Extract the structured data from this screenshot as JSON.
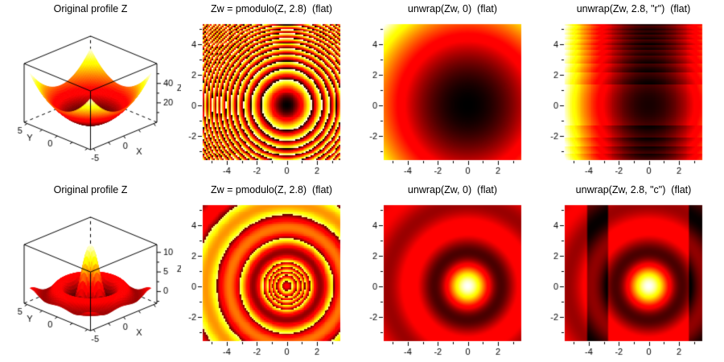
{
  "window": {
    "background": "#ffffff",
    "text_color": "#000000"
  },
  "chart_data": [
    {
      "type": "surface3d",
      "title": "Original profile Z",
      "func": "paraboloid",
      "surface_domain": [
        -5,
        5
      ],
      "box_xy_range": [
        -5.5,
        5.5
      ],
      "z_range": [
        0,
        60.5
      ],
      "x_axis": {
        "label": "X",
        "major_ticks": [
          -5,
          0
        ],
        "tick_labels": [
          "-5",
          "0"
        ],
        "minor_ticks": [
          -2.5,
          2.5,
          5
        ]
      },
      "y_axis": {
        "label": "Y",
        "major_ticks": [
          0,
          5
        ],
        "tick_labels": [
          "0",
          "5"
        ],
        "minor_ticks": [
          -5,
          -2.5,
          2.5
        ]
      },
      "z_axis": {
        "label": "Z",
        "major_ticks": [
          20,
          40
        ],
        "tick_labels": [
          "20",
          "40"
        ],
        "minor_ticks": [
          10,
          30,
          50
        ]
      },
      "color_norm": [
        0,
        50
      ]
    },
    {
      "type": "heatmap",
      "title": "Zw = pmodulo(Z, 2.8)  (flat)",
      "func": "paraboloid",
      "op": "pmodulo",
      "modulo": 2.8,
      "x_range": [
        -5.6,
        3.55
      ],
      "y_range": [
        -3.6,
        5.3
      ],
      "x_axis": {
        "major_ticks": [
          -4,
          -2,
          0,
          2
        ],
        "tick_labels": [
          "-4",
          "-2",
          "0",
          "2"
        ],
        "minor_ticks": [
          -5,
          -3,
          -1,
          1,
          3
        ]
      },
      "y_axis": {
        "major_ticks": [
          -2,
          0,
          2,
          4
        ],
        "tick_labels": [
          "-2",
          "0",
          "2",
          "4"
        ],
        "minor_ticks": [
          -3,
          -1,
          1,
          3,
          5
        ]
      },
      "color_norm": [
        0,
        2.8
      ],
      "render": "blocky"
    },
    {
      "type": "heatmap",
      "title": "unwrap(Zw, 0)  (flat)",
      "func": "paraboloid",
      "op": "none",
      "x_range": [
        -5.6,
        3.55
      ],
      "y_range": [
        -3.6,
        5.3
      ],
      "x_axis": {
        "major_ticks": [
          -4,
          -2,
          0,
          2
        ],
        "tick_labels": [
          "-4",
          "-2",
          "0",
          "2"
        ],
        "minor_ticks": [
          -5,
          -3,
          -1,
          1,
          3
        ]
      },
      "y_axis": {
        "major_ticks": [
          -2,
          0,
          2,
          4
        ],
        "tick_labels": [
          "-2",
          "0",
          "2",
          "4"
        ],
        "minor_ticks": [
          -3,
          -1,
          1,
          3,
          5
        ]
      },
      "color_norm": [
        0,
        59.5
      ],
      "render": "smooth"
    },
    {
      "type": "heatmap",
      "title": "unwrap(Zw, 2.8, \"r\")  (flat)",
      "func": "paraboloid",
      "op": "unwrap_row",
      "modulo": 2.8,
      "row_phase": 0.95,
      "x_range": [
        -5.6,
        3.55
      ],
      "y_range": [
        -3.6,
        5.3
      ],
      "x_axis": {
        "major_ticks": [
          -4,
          -2,
          0,
          2
        ],
        "tick_labels": [
          "-4",
          "-2",
          "0",
          "2"
        ],
        "minor_ticks": [
          -5,
          -3,
          -1,
          1,
          3
        ]
      },
      "y_axis": {
        "major_ticks": [
          -2,
          0,
          2,
          4
        ],
        "tick_labels": [
          "-2",
          "0",
          "2",
          "4"
        ],
        "minor_ticks": [
          -3,
          -1,
          1,
          3,
          5
        ]
      },
      "color_norm": [
        0,
        34.2
      ],
      "render": "blocky"
    },
    {
      "type": "surface3d",
      "title": "Original profile Z",
      "func": "sinc",
      "surface_domain": [
        -5,
        5
      ],
      "box_xy_range": [
        -5.5,
        5.5
      ],
      "z_range": [
        -3,
        12
      ],
      "x_axis": {
        "label": "X",
        "major_ticks": [
          -5,
          0
        ],
        "tick_labels": [
          "-5",
          "0"
        ],
        "minor_ticks": [
          -2.5,
          2.5,
          5
        ]
      },
      "y_axis": {
        "label": "Y",
        "major_ticks": [
          0,
          5
        ],
        "tick_labels": [
          "0",
          "5"
        ],
        "minor_ticks": [
          -5,
          -2.5,
          2.5
        ]
      },
      "z_axis": {
        "label": "Z",
        "major_ticks": [
          0,
          5,
          10
        ],
        "tick_labels": [
          "0",
          "5",
          "10"
        ],
        "minor_ticks": [
          -2.5,
          2.5,
          7.5
        ]
      },
      "color_norm": [
        -4,
        12
      ]
    },
    {
      "type": "heatmap",
      "title": "Zw = pmodulo(Z, 2.8)  (flat)",
      "func": "sinc",
      "op": "pmodulo",
      "modulo": 2.8,
      "x_range": [
        -5.6,
        3.55
      ],
      "y_range": [
        -3.6,
        5.3
      ],
      "x_axis": {
        "major_ticks": [
          -4,
          -2,
          0,
          2
        ],
        "tick_labels": [
          "-4",
          "-2",
          "0",
          "2"
        ],
        "minor_ticks": [
          -5,
          -3,
          -1,
          1,
          3
        ]
      },
      "y_axis": {
        "major_ticks": [
          -2,
          0,
          2,
          4
        ],
        "tick_labels": [
          "-2",
          "0",
          "2",
          "4"
        ],
        "minor_ticks": [
          -3,
          -1,
          1,
          3,
          5
        ]
      },
      "color_norm": [
        0,
        2.8
      ],
      "color_compress": [
        0.12,
        0.9
      ],
      "render": "blocky"
    },
    {
      "type": "heatmap",
      "title": "unwrap(Zw, 0)  (flat)",
      "func": "sinc",
      "op": "none",
      "x_range": [
        -5.6,
        3.55
      ],
      "y_range": [
        -3.6,
        5.3
      ],
      "x_axis": {
        "major_ticks": [
          -4,
          -2,
          0,
          2
        ],
        "tick_labels": [
          "-4",
          "-2",
          "0",
          "2"
        ],
        "minor_ticks": [
          -5,
          -3,
          -1,
          1,
          3
        ]
      },
      "y_axis": {
        "major_ticks": [
          -2,
          0,
          2,
          4
        ],
        "tick_labels": [
          "-2",
          "0",
          "2",
          "4"
        ],
        "minor_ticks": [
          -3,
          -1,
          1,
          3,
          5
        ]
      },
      "color_norm": [
        -4,
        12
      ],
      "render": "smooth"
    },
    {
      "type": "heatmap",
      "title": "unwrap(Zw, 2.8, \"c\")  (flat)",
      "func": "sinc",
      "op": "unwrap_col",
      "modulo": 2.8,
      "bands": [
        [
          -4.1,
          -2.7
        ],
        [
          2.7,
          3.55
        ]
      ],
      "band_offset": -2.8,
      "x_range": [
        -5.6,
        3.55
      ],
      "y_range": [
        -3.6,
        5.3
      ],
      "x_axis": {
        "major_ticks": [
          -4,
          -2,
          0,
          2
        ],
        "tick_labels": [
          "-4",
          "-2",
          "0",
          "2"
        ],
        "minor_ticks": [
          -5,
          -3,
          -1,
          1,
          3
        ]
      },
      "y_axis": {
        "major_ticks": [
          -2,
          0,
          2,
          4
        ],
        "tick_labels": [
          "-2",
          "0",
          "2",
          "4"
        ],
        "minor_ticks": [
          -3,
          -1,
          1,
          3,
          5
        ]
      },
      "color_norm": [
        -4,
        12
      ],
      "render": "smooth"
    }
  ]
}
